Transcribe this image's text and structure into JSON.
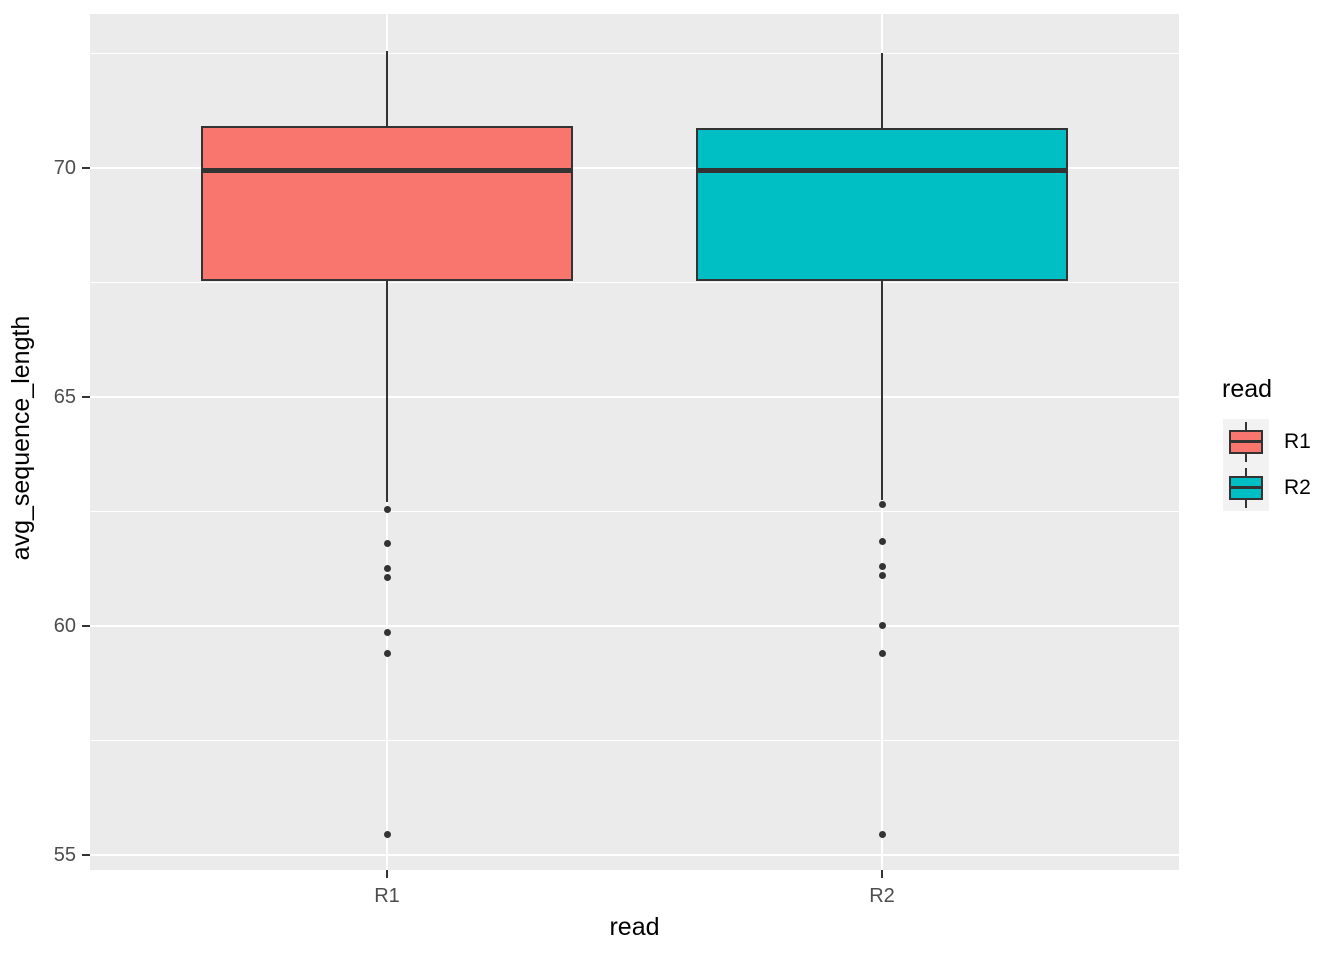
{
  "chart_data": {
    "type": "boxplot",
    "xlabel": "read",
    "ylabel": "avg_sequence_length",
    "categories": [
      "R1",
      "R2"
    ],
    "x_tick_labels": [
      "R1",
      "R2"
    ],
    "y_ticks": [
      55,
      60,
      65,
      70
    ],
    "y_tick_labels": [
      "55",
      "60",
      "65",
      "70"
    ],
    "y_minor_gridlines": [
      57.5,
      62.5,
      67.5,
      72.5
    ],
    "ylim": [
      54.67,
      73.36
    ],
    "grid": true,
    "panel_background": "#EBEBEB",
    "gridline_color": "#FFFFFF",
    "stroke_color": "#333333",
    "tick_label_color": "#4D4D4D",
    "legend": {
      "title": "read",
      "position": "right",
      "key_background": "#F2F2F2",
      "entries": [
        {
          "label": "R1",
          "color": "#F8766D"
        },
        {
          "label": "R2",
          "color": "#00BFC4"
        }
      ]
    },
    "series": [
      {
        "name": "R1",
        "fill": "#F8766D",
        "stats": {
          "whisker_low": 62.7,
          "q1": 67.55,
          "median": 69.95,
          "q3": 70.9,
          "whisker_high": 72.55
        },
        "outliers": [
          62.55,
          61.8,
          61.25,
          61.05,
          59.85,
          59.4,
          55.45
        ]
      },
      {
        "name": "R2",
        "fill": "#00BFC4",
        "stats": {
          "whisker_low": 62.75,
          "q1": 67.55,
          "median": 69.95,
          "q3": 70.85,
          "whisker_high": 72.5
        },
        "outliers": [
          62.65,
          61.85,
          61.3,
          61.1,
          60.0,
          59.4,
          55.45
        ]
      }
    ]
  }
}
